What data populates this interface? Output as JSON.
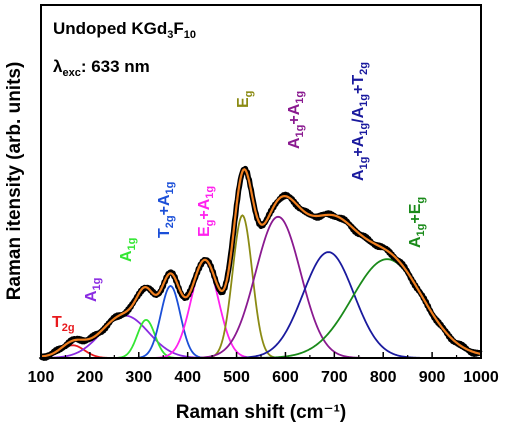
{
  "chart_data": {
    "type": "line",
    "xlabel": "Raman shift (cm⁻¹)",
    "ylabel": "Raman itensity (arb. units)",
    "xlim": [
      100,
      1000
    ],
    "ylim": [
      0,
      1.25
    ],
    "x_ticks": [
      "100",
      "200",
      "300",
      "400",
      "500",
      "600",
      "700",
      "800",
      "900",
      "1000"
    ],
    "y_ticks": [],
    "grid": false,
    "sample_label": {
      "main": "Undoped KGd",
      "sub1": "3",
      "mid": "F",
      "sub2": "10"
    },
    "excitation_label": {
      "lambda": "λ",
      "sub": "exc",
      "text": ": 633 nm"
    },
    "envelope": {
      "color_measured": "#000000",
      "color_fit": "#f07f1f",
      "baseline": 0.004
    },
    "peaks": [
      {
        "center": 165,
        "height": 0.045,
        "sigma": 24,
        "color": "#e8191d",
        "label": [
          [
            "T",
            ""
          ],
          [
            "2g",
            "sub"
          ]
        ]
      },
      {
        "center": 272,
        "height": 0.15,
        "sigma": 48,
        "color": "#8a2be2",
        "label": [
          [
            "A",
            ""
          ],
          [
            "1g",
            "sub"
          ]
        ]
      },
      {
        "center": 315,
        "height": 0.135,
        "sigma": 18,
        "color": "#33e633",
        "label": [
          [
            "A",
            ""
          ],
          [
            "1g",
            "sub"
          ]
        ]
      },
      {
        "center": 365,
        "height": 0.255,
        "sigma": 20,
        "color": "#1b4fd8",
        "label": [
          [
            "T",
            ""
          ],
          [
            "2g",
            "sub"
          ],
          [
            "+A",
            ""
          ],
          [
            "1g",
            "sub"
          ]
        ]
      },
      {
        "center": 435,
        "height": 0.34,
        "sigma": 28,
        "color": "#ff22ee",
        "label": [
          [
            "E",
            ""
          ],
          [
            "g",
            "sub"
          ],
          [
            "+A",
            ""
          ],
          [
            "1g",
            "sub"
          ]
        ]
      },
      {
        "center": 512,
        "height": 0.505,
        "sigma": 20,
        "color": "#8b8b14",
        "label": [
          [
            "E",
            ""
          ],
          [
            "g",
            "sub"
          ]
        ]
      },
      {
        "center": 585,
        "height": 0.5,
        "sigma": 46,
        "color": "#8a1a90",
        "label": [
          [
            "A",
            ""
          ],
          [
            "1g",
            "sub"
          ],
          [
            "+A",
            ""
          ],
          [
            "1g",
            "sub"
          ]
        ]
      },
      {
        "center": 688,
        "height": 0.375,
        "sigma": 52,
        "color": "#1a1a9e",
        "label": [
          [
            "A",
            ""
          ],
          [
            "1g",
            "sub"
          ],
          [
            "+A",
            ""
          ],
          [
            "1g",
            "sub"
          ],
          [
            "/A",
            ""
          ],
          [
            "1g",
            "sub"
          ],
          [
            "+T",
            ""
          ],
          [
            "2g",
            "sub"
          ]
        ]
      },
      {
        "center": 808,
        "height": 0.35,
        "sigma": 72,
        "color": "#1a8a1a",
        "label": [
          [
            "A",
            ""
          ],
          [
            "1g",
            "sub"
          ],
          [
            "+E",
            ""
          ],
          [
            "g",
            "sub"
          ]
        ]
      }
    ]
  }
}
